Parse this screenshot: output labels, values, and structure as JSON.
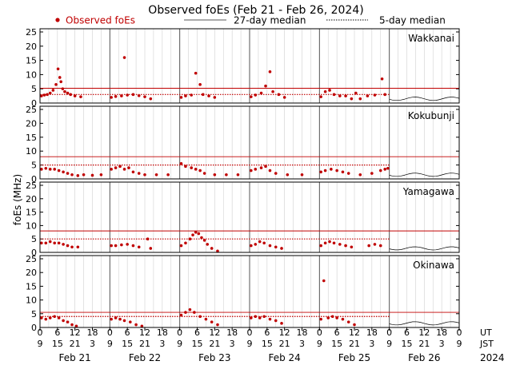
{
  "chart_data": {
    "type": "scatter",
    "title": "Observed foEs (Feb 21 - Feb 26, 2024)",
    "legend": {
      "observed": "Observed foEs",
      "median27": "27-day median",
      "median5": "5-day median",
      "placement": "top"
    },
    "ylabel": "foEs (MHz)",
    "ylim": [
      0,
      25
    ],
    "yticks": [
      0,
      5,
      10,
      15,
      20,
      25
    ],
    "x_unit": "hours since Feb 21 00 UT",
    "xlim": [
      0,
      144
    ],
    "ut_ticks": [
      "0",
      "6",
      "12",
      "18",
      "0",
      "6",
      "12",
      "18",
      "0",
      "6",
      "12",
      "18",
      "0",
      "6",
      "12",
      "18",
      "0",
      "6",
      "12",
      "18",
      "0",
      "6",
      "12",
      "18",
      "0"
    ],
    "jst_ticks": [
      "9",
      "15",
      "21",
      "3",
      "9",
      "15",
      "21",
      "3",
      "9",
      "15",
      "21",
      "3",
      "9",
      "15",
      "21",
      "3",
      "9",
      "15",
      "21",
      "3",
      "9",
      "15",
      "21",
      "3",
      "9"
    ],
    "ut_label": "UT",
    "jst_label": "JST",
    "days": [
      "Feb 21",
      "Feb 22",
      "Feb 23",
      "Feb 24",
      "Feb 25",
      "Feb 26"
    ],
    "year": "2024",
    "colors": {
      "observed": "#c00000",
      "median27": "#c00000",
      "trace": "#000000",
      "divider": "#555555",
      "grid": "#d0d0d0"
    },
    "stations": [
      {
        "name": "Wakkanai",
        "median27_level": 5.2,
        "median5_level": 3.0,
        "observed_end_hour": 120,
        "observed": [
          {
            "x": 0.5,
            "y": 2.5
          },
          {
            "x": 1.5,
            "y": 2.8
          },
          {
            "x": 2.5,
            "y": 3.0
          },
          {
            "x": 3.5,
            "y": 3.5
          },
          {
            "x": 4.5,
            "y": 4.5
          },
          {
            "x": 5.5,
            "y": 6.5
          },
          {
            "x": 6.2,
            "y": 12.0
          },
          {
            "x": 6.8,
            "y": 9.0
          },
          {
            "x": 7.2,
            "y": 7.5
          },
          {
            "x": 7.8,
            "y": 5.0
          },
          {
            "x": 8.5,
            "y": 4.0
          },
          {
            "x": 9.5,
            "y": 3.5
          },
          {
            "x": 10.5,
            "y": 3.0
          },
          {
            "x": 12.0,
            "y": 2.5
          },
          {
            "x": 14.0,
            "y": 2.2
          },
          {
            "x": 24.5,
            "y": 2.0
          },
          {
            "x": 26.0,
            "y": 2.3
          },
          {
            "x": 28.0,
            "y": 2.5
          },
          {
            "x": 29.0,
            "y": 16.0
          },
          {
            "x": 30.0,
            "y": 2.8
          },
          {
            "x": 32.0,
            "y": 3.0
          },
          {
            "x": 34.0,
            "y": 2.6
          },
          {
            "x": 36.0,
            "y": 2.2
          },
          {
            "x": 38.0,
            "y": 1.5
          },
          {
            "x": 48.5,
            "y": 2.0
          },
          {
            "x": 50.0,
            "y": 2.5
          },
          {
            "x": 52.0,
            "y": 2.8
          },
          {
            "x": 53.5,
            "y": 10.5
          },
          {
            "x": 55.0,
            "y": 6.5
          },
          {
            "x": 56.0,
            "y": 3.0
          },
          {
            "x": 58.0,
            "y": 2.5
          },
          {
            "x": 60.0,
            "y": 2.0
          },
          {
            "x": 72.5,
            "y": 2.2
          },
          {
            "x": 74.0,
            "y": 2.8
          },
          {
            "x": 76.0,
            "y": 3.5
          },
          {
            "x": 77.5,
            "y": 6.0
          },
          {
            "x": 79.0,
            "y": 11.0
          },
          {
            "x": 80.0,
            "y": 4.0
          },
          {
            "x": 82.0,
            "y": 3.0
          },
          {
            "x": 84.0,
            "y": 2.0
          },
          {
            "x": 96.5,
            "y": 2.2
          },
          {
            "x": 98.0,
            "y": 4.0
          },
          {
            "x": 99.5,
            "y": 4.5
          },
          {
            "x": 101.0,
            "y": 3.0
          },
          {
            "x": 103.0,
            "y": 2.5
          },
          {
            "x": 105.0,
            "y": 2.5
          },
          {
            "x": 107.0,
            "y": 1.5
          },
          {
            "x": 108.5,
            "y": 3.5
          },
          {
            "x": 110.0,
            "y": 1.5
          },
          {
            "x": 112.5,
            "y": 2.5
          },
          {
            "x": 115.0,
            "y": 2.8
          },
          {
            "x": 117.5,
            "y": 8.5
          },
          {
            "x": 118.5,
            "y": 3.0
          }
        ]
      },
      {
        "name": "Kokubunji",
        "median27_level": 8.0,
        "median5_level": 5.0,
        "observed_end_hour": 120,
        "observed": [
          {
            "x": 0.5,
            "y": 3.5
          },
          {
            "x": 2.0,
            "y": 3.8
          },
          {
            "x": 3.5,
            "y": 3.5
          },
          {
            "x": 5.0,
            "y": 3.5
          },
          {
            "x": 6.5,
            "y": 3.0
          },
          {
            "x": 8.0,
            "y": 2.5
          },
          {
            "x": 9.5,
            "y": 2.0
          },
          {
            "x": 11.0,
            "y": 1.5
          },
          {
            "x": 13.0,
            "y": 1.2
          },
          {
            "x": 15.0,
            "y": 1.5
          },
          {
            "x": 18.0,
            "y": 1.3
          },
          {
            "x": 21.0,
            "y": 1.5
          },
          {
            "x": 24.5,
            "y": 3.5
          },
          {
            "x": 26.0,
            "y": 4.0
          },
          {
            "x": 27.5,
            "y": 4.5
          },
          {
            "x": 29.0,
            "y": 3.5
          },
          {
            "x": 30.5,
            "y": 4.0
          },
          {
            "x": 32.0,
            "y": 2.5
          },
          {
            "x": 34.0,
            "y": 2.0
          },
          {
            "x": 36.0,
            "y": 1.5
          },
          {
            "x": 40.0,
            "y": 1.5
          },
          {
            "x": 44.0,
            "y": 1.5
          },
          {
            "x": 48.5,
            "y": 5.5
          },
          {
            "x": 50.0,
            "y": 4.5
          },
          {
            "x": 52.0,
            "y": 4.0
          },
          {
            "x": 53.5,
            "y": 3.5
          },
          {
            "x": 55.0,
            "y": 3.0
          },
          {
            "x": 56.5,
            "y": 2.0
          },
          {
            "x": 60.0,
            "y": 1.5
          },
          {
            "x": 64.0,
            "y": 1.5
          },
          {
            "x": 68.0,
            "y": 1.5
          },
          {
            "x": 72.5,
            "y": 3.0
          },
          {
            "x": 74.0,
            "y": 3.5
          },
          {
            "x": 76.0,
            "y": 4.0
          },
          {
            "x": 77.5,
            "y": 4.5
          },
          {
            "x": 79.0,
            "y": 3.0
          },
          {
            "x": 81.0,
            "y": 2.0
          },
          {
            "x": 85.0,
            "y": 1.5
          },
          {
            "x": 90.0,
            "y": 1.5
          },
          {
            "x": 96.5,
            "y": 2.5
          },
          {
            "x": 98.0,
            "y": 3.0
          },
          {
            "x": 100.0,
            "y": 3.5
          },
          {
            "x": 102.0,
            "y": 3.0
          },
          {
            "x": 104.0,
            "y": 2.5
          },
          {
            "x": 106.0,
            "y": 2.0
          },
          {
            "x": 110.0,
            "y": 1.5
          },
          {
            "x": 114.0,
            "y": 2.0
          },
          {
            "x": 117.0,
            "y": 3.0
          },
          {
            "x": 118.5,
            "y": 3.5
          },
          {
            "x": 119.5,
            "y": 3.8
          }
        ]
      },
      {
        "name": "Yamagawa",
        "median27_level": 8.0,
        "median5_level": 5.0,
        "observed_end_hour": 120,
        "observed": [
          {
            "x": 0.5,
            "y": 3.5
          },
          {
            "x": 2.0,
            "y": 3.5
          },
          {
            "x": 3.5,
            "y": 4.0
          },
          {
            "x": 5.0,
            "y": 3.5
          },
          {
            "x": 6.5,
            "y": 3.5
          },
          {
            "x": 8.0,
            "y": 3.0
          },
          {
            "x": 9.5,
            "y": 2.5
          },
          {
            "x": 11.0,
            "y": 2.0
          },
          {
            "x": 13.0,
            "y": 2.0
          },
          {
            "x": 24.5,
            "y": 2.5
          },
          {
            "x": 26.0,
            "y": 2.5
          },
          {
            "x": 28.0,
            "y": 2.8
          },
          {
            "x": 30.0,
            "y": 3.0
          },
          {
            "x": 32.0,
            "y": 2.5
          },
          {
            "x": 34.0,
            "y": 2.0
          },
          {
            "x": 37.0,
            "y": 5.0
          },
          {
            "x": 38.0,
            "y": 1.5
          },
          {
            "x": 48.5,
            "y": 2.5
          },
          {
            "x": 50.0,
            "y": 3.5
          },
          {
            "x": 51.5,
            "y": 5.0
          },
          {
            "x": 52.5,
            "y": 6.5
          },
          {
            "x": 53.5,
            "y": 7.5
          },
          {
            "x": 54.5,
            "y": 7.0
          },
          {
            "x": 55.5,
            "y": 5.5
          },
          {
            "x": 56.5,
            "y": 4.5
          },
          {
            "x": 57.5,
            "y": 3.0
          },
          {
            "x": 59.0,
            "y": 1.5
          },
          {
            "x": 61.0,
            "y": 0.5
          },
          {
            "x": 72.5,
            "y": 2.5
          },
          {
            "x": 74.0,
            "y": 3.0
          },
          {
            "x": 75.5,
            "y": 4.0
          },
          {
            "x": 77.0,
            "y": 3.5
          },
          {
            "x": 79.0,
            "y": 2.5
          },
          {
            "x": 81.0,
            "y": 2.0
          },
          {
            "x": 83.0,
            "y": 1.5
          },
          {
            "x": 96.5,
            "y": 2.5
          },
          {
            "x": 98.0,
            "y": 3.5
          },
          {
            "x": 99.5,
            "y": 4.0
          },
          {
            "x": 101.0,
            "y": 3.5
          },
          {
            "x": 103.0,
            "y": 3.0
          },
          {
            "x": 105.0,
            "y": 2.5
          },
          {
            "x": 107.0,
            "y": 2.0
          },
          {
            "x": 113.0,
            "y": 2.5
          },
          {
            "x": 115.0,
            "y": 3.0
          },
          {
            "x": 117.0,
            "y": 2.5
          }
        ]
      },
      {
        "name": "Okinawa",
        "median27_level": 5.5,
        "median5_level": 4.0,
        "observed_end_hour": 120,
        "observed": [
          {
            "x": 0.5,
            "y": 3.5
          },
          {
            "x": 2.0,
            "y": 3.0
          },
          {
            "x": 3.5,
            "y": 3.5
          },
          {
            "x": 5.0,
            "y": 4.0
          },
          {
            "x": 6.5,
            "y": 3.5
          },
          {
            "x": 8.0,
            "y": 2.5
          },
          {
            "x": 9.5,
            "y": 2.0
          },
          {
            "x": 11.0,
            "y": 1.0
          },
          {
            "x": 12.5,
            "y": 0.5
          },
          {
            "x": 24.5,
            "y": 3.0
          },
          {
            "x": 26.0,
            "y": 3.5
          },
          {
            "x": 27.5,
            "y": 3.0
          },
          {
            "x": 29.0,
            "y": 2.5
          },
          {
            "x": 31.0,
            "y": 2.0
          },
          {
            "x": 33.0,
            "y": 1.0
          },
          {
            "x": 35.0,
            "y": 0.5
          },
          {
            "x": 48.5,
            "y": 4.5
          },
          {
            "x": 50.0,
            "y": 5.5
          },
          {
            "x": 51.5,
            "y": 6.5
          },
          {
            "x": 53.0,
            "y": 5.5
          },
          {
            "x": 55.0,
            "y": 4.0
          },
          {
            "x": 57.0,
            "y": 3.0
          },
          {
            "x": 59.0,
            "y": 2.0
          },
          {
            "x": 61.0,
            "y": 1.0
          },
          {
            "x": 72.5,
            "y": 3.5
          },
          {
            "x": 74.0,
            "y": 4.0
          },
          {
            "x": 75.5,
            "y": 3.5
          },
          {
            "x": 77.0,
            "y": 4.0
          },
          {
            "x": 79.0,
            "y": 3.0
          },
          {
            "x": 81.0,
            "y": 2.5
          },
          {
            "x": 83.0,
            "y": 1.5
          },
          {
            "x": 96.5,
            "y": 3.0
          },
          {
            "x": 97.5,
            "y": 17.0
          },
          {
            "x": 99.0,
            "y": 3.5
          },
          {
            "x": 100.5,
            "y": 4.0
          },
          {
            "x": 102.0,
            "y": 3.5
          },
          {
            "x": 104.0,
            "y": 3.0
          },
          {
            "x": 106.0,
            "y": 2.0
          },
          {
            "x": 108.0,
            "y": 1.0
          }
        ]
      }
    ]
  }
}
